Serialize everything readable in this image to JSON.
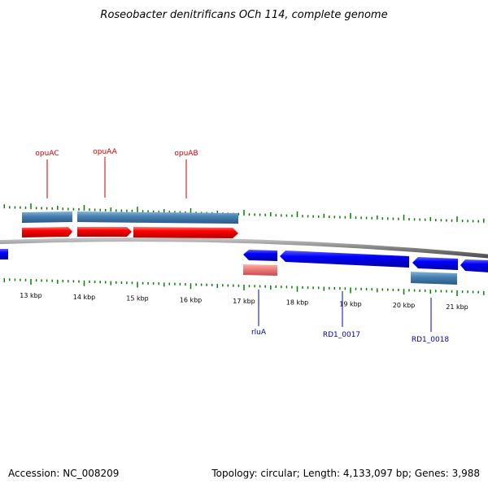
{
  "title": "Roseobacter denitrificans OCh 114, complete genome",
  "footer": {
    "accession": "Accession: NC_008209",
    "info": "Topology: circular; Length: 4,133,097 bp; Genes: 3,988"
  },
  "colors": {
    "forward_gene": "#ff0000",
    "reverse_gene": "#0000ff",
    "forward_cds": "#4682b4",
    "reverse_cds": "#4682b4",
    "rna": "#f08080",
    "backbone": "#808080",
    "ticks": "#008000",
    "label_forward": "#cc0000",
    "label_reverse": "#0000aa"
  },
  "ticks": {
    "labels": [
      "13 kbp",
      "14 kbp",
      "15 kbp",
      "16 kbp",
      "17 kbp",
      "18 kbp",
      "19 kbp",
      "20 kbp",
      "21 kbp"
    ]
  },
  "genes": {
    "forward": [
      {
        "label": "opuAC"
      },
      {
        "label": "opuAA"
      },
      {
        "label": "opuAB"
      }
    ],
    "reverse": [
      {
        "label": "rluA"
      },
      {
        "label": "RD1_0017"
      },
      {
        "label": "RD1_0018"
      }
    ]
  }
}
